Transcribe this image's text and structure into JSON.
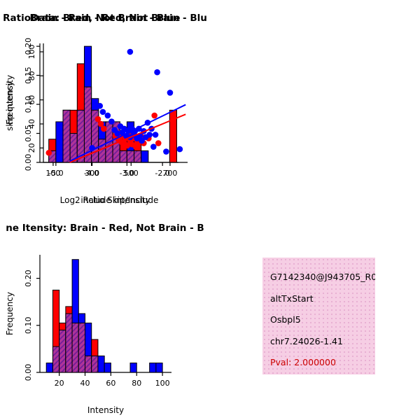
{
  "colors": {
    "red": "#FF0000",
    "blue": "#0000FF",
    "overlap_fill": "#B03399",
    "overlap_hatch": "#6A1B9A",
    "axis": "#000000",
    "info_bg": "#F6CEE4",
    "pval": "#CC0000"
  },
  "chart_data": [
    {
      "id": "hist1",
      "type": "bar",
      "variant": "overlaid-histogram",
      "title": "RatioData: Brain - Red, Not Brain - Blu",
      "xlabel": "Log2 Ratio Skip/Include",
      "ylabel": "Frequency",
      "xlim": [
        -5.45,
        -1.55
      ],
      "ylim": [
        0,
        0.205
      ],
      "xticks": [
        -5.0,
        -4.0,
        -3.0,
        -2.0
      ],
      "xtick_labels": [
        "-5.0",
        "-4.0",
        "-3.0",
        "-2.0"
      ],
      "yticks": [
        0,
        0.05,
        0.1,
        0.15,
        0.2
      ],
      "ytick_labels": [
        "0.00",
        "0.05",
        "0.10",
        "0.15",
        "0.20"
      ],
      "bin_start": -5.2,
      "bin_width": 0.2,
      "series": [
        {
          "name": "Brain",
          "color": "red",
          "values": [
            0.04,
            0,
            0.09,
            0.09,
            0.17,
            0.13,
            0.09,
            0.04,
            0.07,
            0.07,
            0.04,
            0.02,
            0.04,
            0,
            0,
            0,
            0,
            0.09
          ]
        },
        {
          "name": "Not Brain",
          "color": "blue",
          "values": [
            0.02,
            0.07,
            0.09,
            0.05,
            0.09,
            0.2,
            0.11,
            0.07,
            0.07,
            0.07,
            0.02,
            0.07,
            0.02,
            0.02,
            0,
            0,
            0,
            0
          ]
        }
      ]
    },
    {
      "id": "scatter",
      "type": "scatter",
      "title": "Brain - Red, Not Brain - Blue",
      "xlabel": "include intensity",
      "ylabel": "skip intensity",
      "xlim": [
        50,
        790
      ],
      "ylim": [
        8,
        107
      ],
      "xticks": [
        100,
        300,
        500,
        700
      ],
      "xtick_labels": [
        "100",
        "300",
        "500",
        "700"
      ],
      "yticks": [
        20,
        40,
        60,
        80,
        100
      ],
      "ytick_labels": [
        "20",
        "40",
        "60",
        "80",
        "100"
      ],
      "series": [
        {
          "name": "Brain",
          "color": "red",
          "points": [
            [
              78,
              16
            ],
            [
              330,
              44
            ],
            [
              345,
              40
            ],
            [
              360,
              36
            ],
            [
              420,
              30
            ],
            [
              435,
              27
            ],
            [
              450,
              25
            ],
            [
              455,
              30
            ],
            [
              465,
              24
            ],
            [
              470,
              28
            ],
            [
              480,
              22
            ],
            [
              490,
              30
            ],
            [
              495,
              26
            ],
            [
              505,
              23
            ],
            [
              515,
              28
            ],
            [
              525,
              21
            ],
            [
              535,
              26
            ],
            [
              550,
              30
            ],
            [
              565,
              24
            ],
            [
              590,
              28
            ],
            [
              620,
              47
            ],
            [
              640,
              24
            ]
          ]
        },
        {
          "name": "Not Brain",
          "color": "blue",
          "points": [
            [
              300,
              20
            ],
            [
              340,
              55
            ],
            [
              355,
              50
            ],
            [
              380,
              47
            ],
            [
              400,
              42
            ],
            [
              415,
              35
            ],
            [
              430,
              32
            ],
            [
              445,
              38
            ],
            [
              455,
              33
            ],
            [
              465,
              36
            ],
            [
              475,
              30
            ],
            [
              485,
              34
            ],
            [
              495,
              29
            ],
            [
              505,
              36
            ],
            [
              515,
              31
            ],
            [
              520,
              34
            ],
            [
              530,
              28
            ],
            [
              540,
              36
            ],
            [
              545,
              30
            ],
            [
              555,
              26
            ],
            [
              565,
              34
            ],
            [
              575,
              29
            ],
            [
              585,
              41
            ],
            [
              595,
              31
            ],
            [
              605,
              36
            ],
            [
              615,
              21
            ],
            [
              625,
              31
            ],
            [
              495,
              100
            ],
            [
              634,
              83
            ],
            [
              680,
              17
            ],
            [
              700,
              66
            ],
            [
              750,
              19
            ]
          ]
        }
      ],
      "lines": [
        {
          "color": "red",
          "x1": 185,
          "y1": 8,
          "x2": 780,
          "y2": 48
        },
        {
          "color": "blue",
          "x1": 185,
          "y1": 9,
          "x2": 780,
          "y2": 56
        }
      ]
    },
    {
      "id": "hist2",
      "type": "bar",
      "variant": "overlaid-histogram",
      "title": "ne Itensity: Brain - Red, Not Brain - B",
      "xlabel": "Intensity",
      "ylabel": "Frequency",
      "xlim": [
        5,
        107
      ],
      "ylim": [
        0,
        0.25
      ],
      "xticks": [
        20,
        40,
        60,
        80,
        100
      ],
      "xtick_labels": [
        "20",
        "40",
        "60",
        "80",
        "100"
      ],
      "yticks": [
        0,
        0.1,
        0.2
      ],
      "ytick_labels": [
        "0.00",
        "0.10",
        "0.20"
      ],
      "bin_start": 10,
      "bin_width": 5,
      "series": [
        {
          "name": "Brain",
          "color": "red",
          "values": [
            0,
            0.175,
            0.105,
            0.14,
            0.105,
            0.105,
            0.035,
            0.07,
            0,
            0,
            0,
            0,
            0,
            0,
            0,
            0,
            0,
            0,
            0
          ]
        },
        {
          "name": "Not Brain",
          "color": "blue",
          "values": [
            0.02,
            0.055,
            0.09,
            0.125,
            0.24,
            0.125,
            0.105,
            0.035,
            0.035,
            0.02,
            0,
            0,
            0,
            0.02,
            0,
            0,
            0.02,
            0.02,
            0
          ]
        }
      ]
    }
  ],
  "info_box": {
    "lines": [
      {
        "text": "G7142340@J943705_R0",
        "color": "#000000"
      },
      {
        "text": "altTxStart",
        "color": "#000000"
      },
      {
        "text": "Osbpl5",
        "color": "#000000"
      },
      {
        "text": "chr7.24026-1.41",
        "color": "#000000"
      },
      {
        "text": "Pval: 2.000000",
        "color": "#CC0000"
      }
    ]
  }
}
